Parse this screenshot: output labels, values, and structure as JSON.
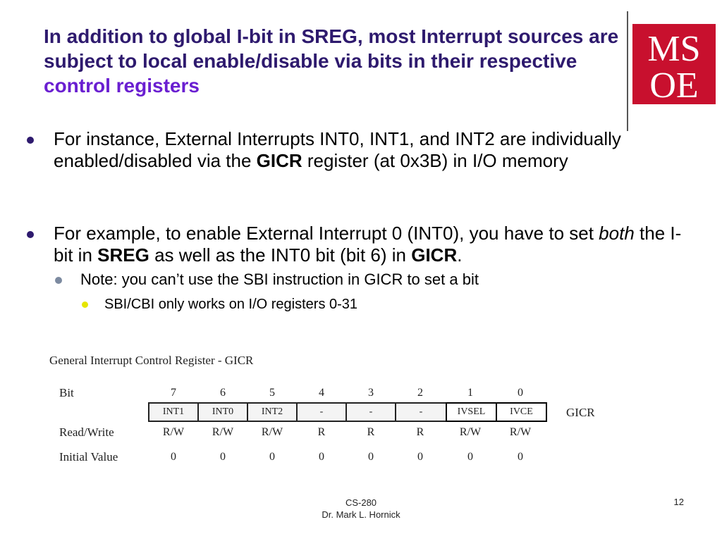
{
  "title": {
    "line_main": "In addition to global I-bit in SREG, most Interrupt sources are subject to local enable/disable via bits in their respective ",
    "accent": "control registers"
  },
  "logo": {
    "text_top": "MS",
    "text_bottom": "OE",
    "color": "#c8102e"
  },
  "bullets": [
    {
      "pre": "For instance, External Interrupts INT0, INT1, and INT2 are individually enabled/disabled via the ",
      "bold": "GICR",
      "post": " register (at 0x3B) in I/O memory"
    },
    {
      "p1": "For example, to enable External Interrupt 0 (INT0), you have to set ",
      "italic": "both",
      "p2": " the I-bit in ",
      "bold1": "SREG",
      "p3": " as well as the INT0 bit  (bit 6) in ",
      "bold2": "GICR",
      "p4": "."
    }
  ],
  "sub_bullet": "Note: you can’t use the SBI instruction in GICR to set a bit",
  "sub_sub_bullet": "SBI/CBI only works on I/O registers 0-31",
  "register": {
    "title": "General Interrupt Control Register - GICR",
    "row_bit_label": "Bit",
    "row_rw_label": "Read/Write",
    "row_init_label": "Initial Value",
    "bits": [
      "7",
      "6",
      "5",
      "4",
      "3",
      "2",
      "1",
      "0"
    ],
    "names": [
      "INT1",
      "INT0",
      "INT2",
      "-",
      "-",
      "-",
      "IVSEL",
      "IVCE"
    ],
    "rw": [
      "R/W",
      "R/W",
      "R/W",
      "R",
      "R",
      "R",
      "R/W",
      "R/W"
    ],
    "init": [
      "0",
      "0",
      "0",
      "0",
      "0",
      "0",
      "0",
      "0"
    ],
    "reg_name": "GICR"
  },
  "footer": {
    "course": "CS-280",
    "author": "Dr. Mark L. Hornick",
    "page": "12"
  }
}
